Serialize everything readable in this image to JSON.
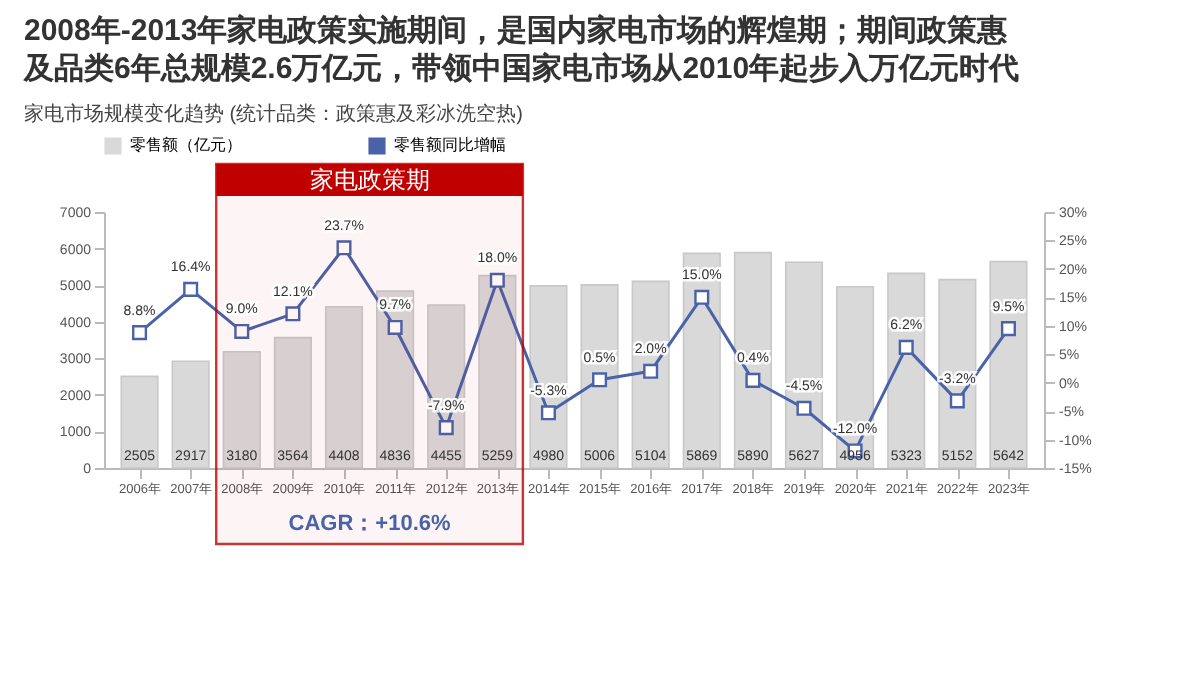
{
  "chart_data": {
    "type": "bar",
    "title": "2008年-2013年家电政策实施期间，是国内家电市场的辉煌期；期间政策惠及品类6年总规模2.6万亿元，带领中国家电市场从2010年起步入万亿元时代",
    "subtitle": "家电市场规模变化趋势 (统计品类：政策惠及彩冰洗空热)",
    "categories": [
      "2006年",
      "2007年",
      "2008年",
      "2009年",
      "2010年",
      "2011年",
      "2012年",
      "2013年",
      "2014年",
      "2015年",
      "2016年",
      "2017年",
      "2018年",
      "2019年",
      "2020年",
      "2021年",
      "2022年",
      "2023年"
    ],
    "series": [
      {
        "name": "零售额（亿元）",
        "color": "#d9d9d9",
        "values": [
          2505,
          2917,
          3180,
          3564,
          4408,
          4836,
          4455,
          5259,
          4980,
          5006,
          5104,
          5869,
          5890,
          5627,
          4956,
          5323,
          5152,
          5642
        ],
        "value_labels": [
          "2505",
          "2917",
          "3180",
          "3564",
          "4408",
          "4836",
          "4455",
          "5259",
          "4980",
          "5006",
          "5104",
          "5869",
          "5890",
          "5627",
          "4956",
          "5323",
          "5152",
          "5642"
        ]
      },
      {
        "name": "零售额同比增幅",
        "type": "line",
        "axis": "y2",
        "color": "#4a62a8",
        "values": [
          8.8,
          16.4,
          9.0,
          12.1,
          23.7,
          9.7,
          -7.9,
          18.0,
          -5.3,
          0.5,
          2.0,
          15.0,
          0.4,
          -4.5,
          -12.0,
          6.2,
          -3.2,
          9.5
        ],
        "value_labels": [
          "8.8%",
          "16.4%",
          "9.0%",
          "12.1%",
          "23.7%",
          "9.7%",
          "-7.9%",
          "18.0%",
          "-5.3%",
          "0.5%",
          "2.0%",
          "15.0%",
          "0.4%",
          "-4.5%",
          "-12.0%",
          "6.2%",
          "-3.2%",
          "9.5%"
        ]
      }
    ],
    "ylim": [
      0,
      7000
    ],
    "yticks": [
      0,
      1000,
      2000,
      3000,
      4000,
      5000,
      6000,
      7000
    ],
    "y2lim": [
      -15,
      30
    ],
    "y2ticks": [
      {
        "value": -15,
        "label": "-15%"
      },
      {
        "value": -10,
        "label": "-10%"
      },
      {
        "value": -5,
        "label": "-5%"
      },
      {
        "value": 0,
        "label": "0%"
      },
      {
        "value": 5,
        "label": "5%"
      },
      {
        "value": 10,
        "label": "10%"
      },
      {
        "value": 15,
        "label": "15%"
      },
      {
        "value": 20,
        "label": "20%"
      },
      {
        "value": 25,
        "label": "25%"
      },
      {
        "value": 30,
        "label": "30%"
      }
    ],
    "bands": [
      {
        "axis": "x",
        "from": "2008年",
        "to": "2013年",
        "label": "家电政策期",
        "color": "#c00000"
      }
    ],
    "annotations": [
      "CAGR：+10.6%"
    ],
    "grid": false,
    "legend": "top",
    "marker": "square"
  }
}
